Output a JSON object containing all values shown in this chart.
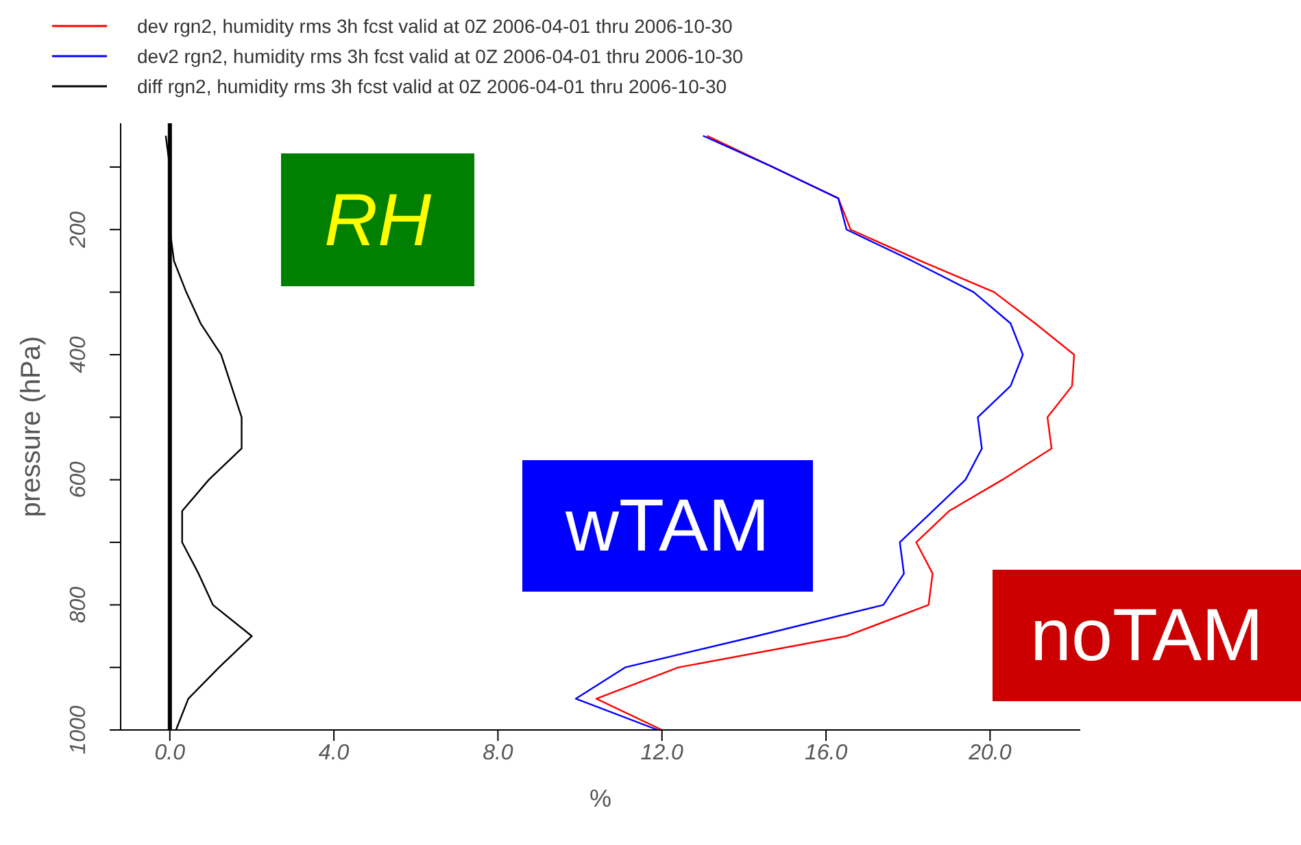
{
  "chart_data": {
    "type": "line",
    "xlabel": "%",
    "ylabel": "pressure (hPa)",
    "xlim": [
      -1.2,
      22.2
    ],
    "ylim": [
      1000,
      30
    ],
    "xticks": [
      {
        "value": 0,
        "label": "0.0"
      },
      {
        "value": 4,
        "label": "4.0"
      },
      {
        "value": 8,
        "label": "8.0"
      },
      {
        "value": 12,
        "label": "12.0"
      },
      {
        "value": 16,
        "label": "16.0"
      },
      {
        "value": 20,
        "label": "20.0"
      }
    ],
    "yticks": [
      {
        "value": 100,
        "label": null
      },
      200,
      {
        "value": 300,
        "label": null
      },
      400,
      {
        "value": 500,
        "label": null
      },
      600,
      {
        "value": 700,
        "label": null
      },
      800,
      {
        "value": 900,
        "label": null
      },
      1000
    ],
    "series": [
      {
        "name": "dev rgn2, humidity rms 3h fcst valid at 0Z 2006-04-01 thru 2006-10-30",
        "color": "#ff0000",
        "x": [
          13.1,
          14.7,
          16.3,
          16.6,
          18.3,
          20.1,
          21.1,
          22.05,
          22.0,
          21.4,
          21.5,
          20.3,
          19.0,
          18.2,
          18.6,
          18.5,
          16.5,
          12.4,
          10.4,
          12.0
        ],
        "values": [
          50,
          100,
          150,
          200,
          250,
          300,
          350,
          400,
          450,
          500,
          550,
          600,
          650,
          700,
          750,
          800,
          850,
          900,
          950,
          1000
        ]
      },
      {
        "name": "dev2 rgn2, humidity rms 3h fcst valid at 0Z 2006-04-01 thru 2006-10-30",
        "color": "#0000ff",
        "x": [
          13.0,
          14.7,
          16.3,
          16.5,
          18.1,
          19.6,
          20.5,
          20.8,
          20.5,
          19.7,
          19.8,
          19.4,
          18.6,
          17.8,
          17.9,
          17.4,
          14.3,
          11.1,
          9.9,
          11.9
        ],
        "values": [
          50,
          100,
          150,
          200,
          250,
          300,
          350,
          400,
          450,
          500,
          550,
          600,
          650,
          700,
          750,
          800,
          850,
          900,
          950,
          1000
        ]
      },
      {
        "name": "diff rgn2, humidity rms 3h fcst valid at 0Z 2006-04-01 thru 2006-10-30",
        "color": "#000000",
        "x": [
          -0.1,
          0,
          0,
          0,
          0.1,
          0.4,
          0.75,
          1.25,
          1.5,
          1.75,
          1.75,
          0.95,
          0.3,
          0.3,
          0.7,
          1.05,
          2.0,
          1.2,
          0.45,
          0.15
        ],
        "values": [
          50,
          100,
          150,
          200,
          250,
          300,
          350,
          400,
          450,
          500,
          550,
          600,
          650,
          700,
          750,
          800,
          850,
          900,
          950,
          1000
        ]
      }
    ],
    "ref_lines": [
      {
        "axis": "x",
        "value": 0,
        "color": "#000000"
      }
    ],
    "annotations": [
      "RH",
      "wTAM",
      "noTAM"
    ],
    "legend": "top left",
    "grid": false,
    "marker": "none",
    "line_style": "solid"
  }
}
